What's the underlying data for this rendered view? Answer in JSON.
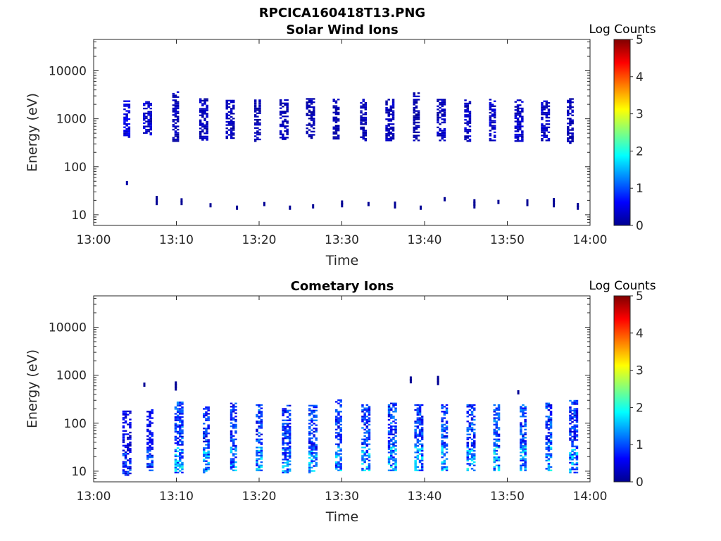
{
  "figure": {
    "title": "RPCICA160418T13.PNG"
  },
  "chart_data": [
    {
      "type": "heatmap",
      "title": "Solar Wind Ions",
      "xlabel": "Time",
      "ylabel": "Energy (eV)",
      "x_ticks": [
        "13:00",
        "13:10",
        "13:20",
        "13:30",
        "13:40",
        "13:50",
        "14:00"
      ],
      "xlim_minutes": [
        0,
        60
      ],
      "y_scale": "log",
      "y_ticks": [
        "10",
        "100",
        "1000",
        "10000"
      ],
      "ylim_eV": [
        6,
        45000
      ],
      "grid": false,
      "colorbar": {
        "label": "Log Counts",
        "ticks": [
          "0",
          "1",
          "2",
          "3",
          "4",
          "5"
        ],
        "range": [
          0,
          5
        ],
        "colormap": "jet"
      },
      "bursts": [
        {
          "minute": 4.0,
          "e_low": 400,
          "e_high": 2400,
          "level": 0.55
        },
        {
          "minute": 6.5,
          "e_low": 450,
          "e_high": 2300,
          "level": 0.5
        },
        {
          "minute": 9.9,
          "e_low": 330,
          "e_high": 3500,
          "level": 0.35
        },
        {
          "minute": 13.3,
          "e_low": 350,
          "e_high": 2600,
          "level": 0.35
        },
        {
          "minute": 16.5,
          "e_low": 380,
          "e_high": 2600,
          "level": 0.35
        },
        {
          "minute": 19.8,
          "e_low": 330,
          "e_high": 2500,
          "level": 0.3
        },
        {
          "minute": 23.0,
          "e_low": 360,
          "e_high": 2500,
          "level": 0.35
        },
        {
          "minute": 26.2,
          "e_low": 380,
          "e_high": 2500,
          "level": 0.3
        },
        {
          "minute": 29.3,
          "e_low": 370,
          "e_high": 2500,
          "level": 0.3
        },
        {
          "minute": 32.6,
          "e_low": 340,
          "e_high": 2500,
          "level": 0.35
        },
        {
          "minute": 35.8,
          "e_low": 340,
          "e_high": 2500,
          "level": 0.35
        },
        {
          "minute": 39.0,
          "e_low": 340,
          "e_high": 3500,
          "level": 0.3
        },
        {
          "minute": 42.0,
          "e_low": 340,
          "e_high": 2500,
          "level": 0.4
        },
        {
          "minute": 45.2,
          "e_low": 330,
          "e_high": 2500,
          "level": 0.4
        },
        {
          "minute": 48.2,
          "e_low": 340,
          "e_high": 2500,
          "level": 0.45
        },
        {
          "minute": 51.4,
          "e_low": 330,
          "e_high": 2500,
          "level": 0.45
        },
        {
          "minute": 54.6,
          "e_low": 340,
          "e_high": 2500,
          "level": 0.45
        },
        {
          "minute": 57.6,
          "e_low": 300,
          "e_high": 2500,
          "level": 0.35
        }
      ],
      "low_energy_blips": [
        {
          "minute": 3.9,
          "energy": 52,
          "level": 0.2
        },
        {
          "minute": 7.5,
          "energy": 20,
          "level": 0.1
        },
        {
          "minute": 10.5,
          "energy": 20,
          "level": 0.1
        },
        {
          "minute": 14.0,
          "energy": 18,
          "level": 0.1
        },
        {
          "minute": 17.2,
          "energy": 16,
          "level": 0.1
        },
        {
          "minute": 20.5,
          "energy": 19,
          "level": 0.1
        },
        {
          "minute": 23.6,
          "energy": 16,
          "level": 0.1
        },
        {
          "minute": 26.4,
          "energy": 17,
          "level": 0.1
        },
        {
          "minute": 29.9,
          "energy": 18,
          "level": 0.1
        },
        {
          "minute": 33.1,
          "energy": 19,
          "level": 0.1
        },
        {
          "minute": 36.3,
          "energy": 17,
          "level": 0.1
        },
        {
          "minute": 39.4,
          "energy": 16,
          "level": 0.1
        },
        {
          "minute": 42.3,
          "energy": 24,
          "level": 0.1
        },
        {
          "minute": 45.9,
          "energy": 17,
          "level": 0.1
        },
        {
          "minute": 48.8,
          "energy": 21,
          "level": 0.1
        },
        {
          "minute": 52.3,
          "energy": 19,
          "level": 0.1
        },
        {
          "minute": 55.5,
          "energy": 18,
          "level": 0.1
        },
        {
          "minute": 58.4,
          "energy": 16,
          "level": 0.1
        }
      ]
    },
    {
      "type": "heatmap",
      "title": "Cometary Ions",
      "xlabel": "Time",
      "ylabel": "Energy (eV)",
      "x_ticks": [
        "13:00",
        "13:10",
        "13:20",
        "13:30",
        "13:40",
        "13:50",
        "14:00"
      ],
      "xlim_minutes": [
        0,
        60
      ],
      "y_scale": "log",
      "y_ticks": [
        "10",
        "100",
        "1000",
        "10000"
      ],
      "ylim_eV": [
        6,
        45000
      ],
      "grid": false,
      "colorbar": {
        "label": "Log Counts",
        "ticks": [
          "0",
          "1",
          "2",
          "3",
          "4",
          "5"
        ],
        "range": [
          0,
          5
        ],
        "colormap": "jet"
      },
      "bursts": [
        {
          "minute": 4.0,
          "e_low": 8,
          "e_high": 180,
          "level": 0.65
        },
        {
          "minute": 6.8,
          "e_low": 10,
          "e_high": 190,
          "level": 0.7
        },
        {
          "minute": 10.3,
          "e_low": 9,
          "e_high": 280,
          "level": 1.1
        },
        {
          "minute": 13.6,
          "e_low": 9,
          "e_high": 240,
          "level": 1.0
        },
        {
          "minute": 16.9,
          "e_low": 10,
          "e_high": 280,
          "level": 1.0
        },
        {
          "minute": 20.0,
          "e_low": 10,
          "e_high": 230,
          "level": 1.1
        },
        {
          "minute": 23.3,
          "e_low": 9,
          "e_high": 240,
          "level": 1.0
        },
        {
          "minute": 26.5,
          "e_low": 9,
          "e_high": 230,
          "level": 1.0
        },
        {
          "minute": 29.6,
          "e_low": 10,
          "e_high": 300,
          "level": 1.0
        },
        {
          "minute": 32.9,
          "e_low": 10,
          "e_high": 240,
          "level": 1.05
        },
        {
          "minute": 36.1,
          "e_low": 10,
          "e_high": 250,
          "level": 1.1
        },
        {
          "minute": 39.3,
          "e_low": 10,
          "e_high": 230,
          "level": 1.0
        },
        {
          "minute": 42.4,
          "e_low": 10,
          "e_high": 230,
          "level": 1.1
        },
        {
          "minute": 45.6,
          "e_low": 10,
          "e_high": 230,
          "level": 1.1
        },
        {
          "minute": 48.7,
          "e_low": 10,
          "e_high": 230,
          "level": 1.15
        },
        {
          "minute": 51.9,
          "e_low": 10,
          "e_high": 230,
          "level": 1.1
        },
        {
          "minute": 55.0,
          "e_low": 10,
          "e_high": 250,
          "level": 1.1
        },
        {
          "minute": 58.0,
          "e_low": 9,
          "e_high": 300,
          "level": 1.0
        }
      ],
      "high_energy_blips": [
        {
          "minute": 6.0,
          "energy": 720,
          "level": 0.1
        },
        {
          "minute": 9.8,
          "energy": 600,
          "level": 0.1
        },
        {
          "minute": 38.2,
          "energy": 850,
          "level": 0.1
        },
        {
          "minute": 41.5,
          "energy": 780,
          "level": 0.1
        },
        {
          "minute": 51.2,
          "energy": 500,
          "level": 0.1
        }
      ]
    }
  ]
}
